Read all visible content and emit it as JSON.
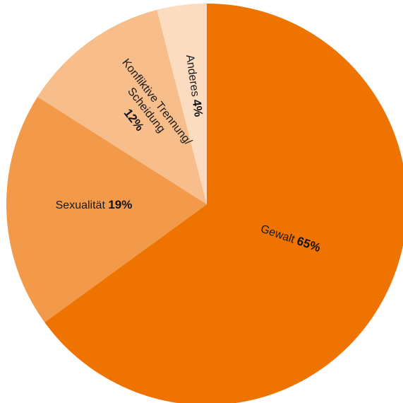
{
  "chart_data": {
    "type": "pie",
    "start_angle_deg": 0,
    "direction": "clockwise",
    "slices": [
      {
        "label": "Gewalt",
        "value": 65,
        "display": "65%",
        "color": "#EF7300"
      },
      {
        "label": "Sexualität",
        "value": 19,
        "display": "19%",
        "color": "#F29A4A"
      },
      {
        "label": "Konfliktive Trennung/ Scheidung",
        "label_lines": [
          "Konfliktive Trennung/",
          "Scheidung"
        ],
        "value": 12,
        "display": "12%",
        "color": "#F7BD8A"
      },
      {
        "label": "Anderes",
        "value": 4,
        "display": "4%",
        "color": "#FCDCC0"
      }
    ]
  }
}
